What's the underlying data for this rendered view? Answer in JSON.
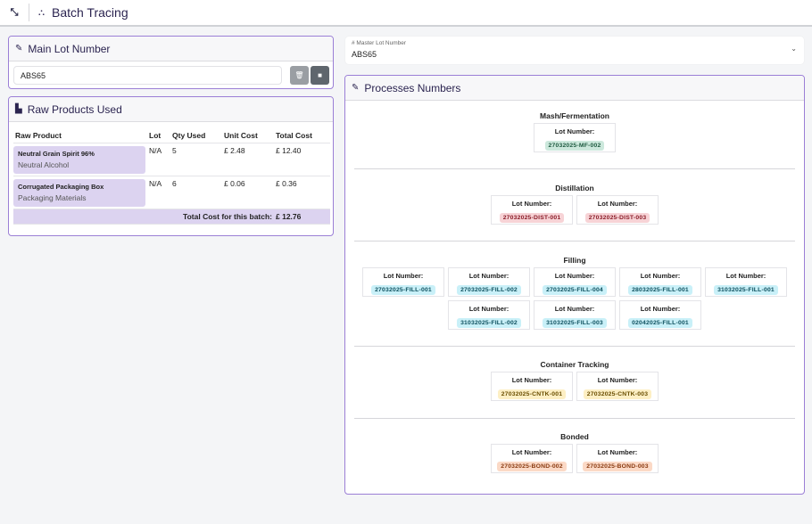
{
  "header": {
    "title": "Batch Tracing",
    "expand_icon": "expand-icon",
    "title_icon": "sitemap-icon"
  },
  "main_lot": {
    "title": "Main Lot Number",
    "value": "ABS65"
  },
  "raw": {
    "title": "Raw Products Used",
    "columns": [
      "Raw Product",
      "Lot",
      "Qty Used",
      "Unit Cost",
      "Total Cost"
    ],
    "rows": [
      {
        "name": "Neutral Grain Spirit 96%",
        "category": "Neutral Alcohol",
        "lot": "N/A",
        "qty": "5",
        "unit": "£ 2.48",
        "total": "£ 12.40"
      },
      {
        "name": "Corrugated Packaging Box",
        "category": "Packaging Materials",
        "lot": "N/A",
        "qty": "6",
        "unit": "£ 0.06",
        "total": "£ 0.36"
      }
    ],
    "total_label": "Total Cost for this batch:",
    "total_value": "£ 12.76"
  },
  "master": {
    "label": "# Master Lot Number",
    "value": "ABS65"
  },
  "processes": {
    "title": "Processes Numbers",
    "lot_label": "Lot Number:",
    "colors": {
      "green": [
        "#cce8dc",
        "#1e5a40"
      ],
      "red": [
        "#f7d3d6",
        "#8a1c28"
      ],
      "cyan": [
        "#c9f0f8",
        "#0d4f5e"
      ],
      "yellow": [
        "#fdefc4",
        "#6a4e00"
      ],
      "orange": [
        "#fbd9c6",
        "#8a3a10"
      ]
    },
    "sections": [
      {
        "name": "Mash/Fermentation",
        "color": "green",
        "lots": [
          "27032025-MF-002"
        ]
      },
      {
        "name": "Distillation",
        "color": "red",
        "lots": [
          "27032025-DIST-001",
          "27032025-DIST-003"
        ]
      },
      {
        "name": "Filling",
        "color": "cyan",
        "lots": [
          "27032025-FILL-001",
          "27032025-FILL-002",
          "27032025-FILL-004",
          "28032025-FILL-001",
          "31032025-FILL-001",
          "31032025-FILL-002",
          "31032025-FILL-003",
          "02042025-FILL-001"
        ]
      },
      {
        "name": "Container Tracking",
        "color": "yellow",
        "lots": [
          "27032025-CNTK-001",
          "27032025-CNTK-003"
        ]
      },
      {
        "name": "Bonded",
        "color": "orange",
        "lots": [
          "27032025-BOND-002",
          "27032025-BOND-003"
        ]
      }
    ]
  }
}
